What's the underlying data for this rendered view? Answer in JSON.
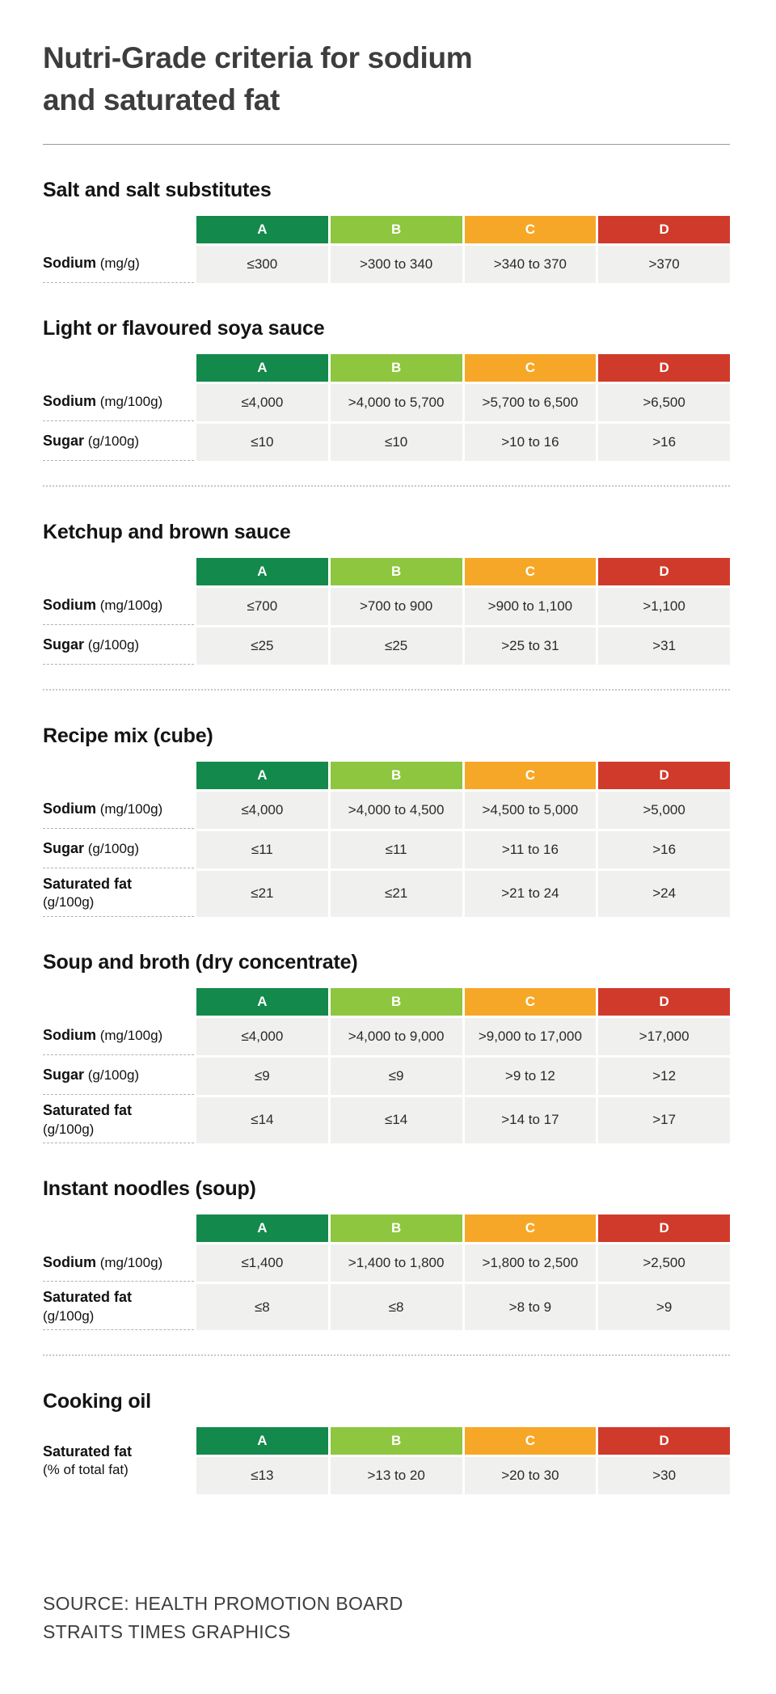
{
  "page": {
    "title_line1": "Nutri-Grade criteria for sodium",
    "title_line2": "and saturated fat",
    "source_line1": "SOURCE: HEALTH PROMOTION BOARD",
    "source_line2": "STRAITS TIMES GRAPHICS"
  },
  "grades": [
    {
      "label": "A",
      "color": "#13894b"
    },
    {
      "label": "B",
      "color": "#8ec63f"
    },
    {
      "label": "C",
      "color": "#f7a727"
    },
    {
      "label": "D",
      "color": "#d03a2b"
    }
  ],
  "chart_data": [
    {
      "type": "table",
      "title": "Salt and salt substitutes",
      "columns": [
        "",
        "A",
        "B",
        "C",
        "D"
      ],
      "rows": [
        {
          "label": "Sodium",
          "unit": "(mg/g)",
          "values": [
            "≤300",
            ">300 to 340",
            ">340 to 370",
            ">370"
          ]
        }
      ],
      "separator_after": false
    },
    {
      "type": "table",
      "title": "Light or flavoured soya sauce",
      "columns": [
        "",
        "A",
        "B",
        "C",
        "D"
      ],
      "rows": [
        {
          "label": "Sodium",
          "unit": "(mg/100g)",
          "values": [
            "≤4,000",
            ">4,000 to 5,700",
            ">5,700 to 6,500",
            ">6,500"
          ]
        },
        {
          "label": "Sugar",
          "unit": "(g/100g)",
          "values": [
            "≤10",
            "≤10",
            ">10 to 16",
            ">16"
          ]
        }
      ],
      "separator_after": true
    },
    {
      "type": "table",
      "title": "Ketchup and brown sauce",
      "columns": [
        "",
        "A",
        "B",
        "C",
        "D"
      ],
      "rows": [
        {
          "label": "Sodium",
          "unit": "(mg/100g)",
          "values": [
            "≤700",
            ">700 to 900",
            ">900 to 1,100",
            ">1,100"
          ]
        },
        {
          "label": "Sugar",
          "unit": "(g/100g)",
          "values": [
            "≤25",
            "≤25",
            ">25 to 31",
            ">31"
          ]
        }
      ],
      "separator_after": true
    },
    {
      "type": "table",
      "title": "Recipe mix (cube)",
      "columns": [
        "",
        "A",
        "B",
        "C",
        "D"
      ],
      "rows": [
        {
          "label": "Sodium",
          "unit": "(mg/100g)",
          "values": [
            "≤4,000",
            ">4,000 to 4,500",
            ">4,500 to 5,000",
            ">5,000"
          ]
        },
        {
          "label": "Sugar",
          "unit": "(g/100g)",
          "values": [
            "≤11",
            "≤11",
            ">11 to 16",
            ">16"
          ]
        },
        {
          "label": "Saturated fat",
          "unit": "(g/100g)",
          "unit_on_new_line": true,
          "values": [
            "≤21",
            "≤21",
            ">21 to 24",
            ">24"
          ]
        }
      ],
      "separator_after": false
    },
    {
      "type": "table",
      "title": "Soup and broth (dry concentrate)",
      "columns": [
        "",
        "A",
        "B",
        "C",
        "D"
      ],
      "rows": [
        {
          "label": "Sodium",
          "unit": "(mg/100g)",
          "values": [
            "≤4,000",
            ">4,000 to 9,000",
            ">9,000 to 17,000",
            ">17,000"
          ]
        },
        {
          "label": "Sugar",
          "unit": "(g/100g)",
          "values": [
            "≤9",
            "≤9",
            ">9 to 12",
            ">12"
          ]
        },
        {
          "label": "Saturated fat",
          "unit": "(g/100g)",
          "unit_on_new_line": true,
          "values": [
            "≤14",
            "≤14",
            ">14 to 17",
            ">17"
          ]
        }
      ],
      "separator_after": false
    },
    {
      "type": "table",
      "title": "Instant noodles (soup)",
      "columns": [
        "",
        "A",
        "B",
        "C",
        "D"
      ],
      "rows": [
        {
          "label": "Sodium",
          "unit": "(mg/100g)",
          "values": [
            "≤1,400",
            ">1,400 to 1,800",
            ">1,800 to 2,500",
            ">2,500"
          ]
        },
        {
          "label": "Saturated fat",
          "unit": "(g/100g)",
          "unit_on_new_line": true,
          "values": [
            "≤8",
            "≤8",
            ">8 to 9",
            ">9"
          ]
        }
      ],
      "separator_after": true
    },
    {
      "type": "table",
      "title": "Cooking oil",
      "columns": [
        "",
        "A",
        "B",
        "C",
        "D"
      ],
      "label_spans_header": true,
      "rows": [
        {
          "label": "Saturated fat",
          "unit": "(% of total fat)",
          "unit_on_new_line": true,
          "values": [
            "≤13",
            ">13 to 20",
            ">20 to 30",
            ">30"
          ]
        }
      ],
      "separator_after": false
    }
  ]
}
